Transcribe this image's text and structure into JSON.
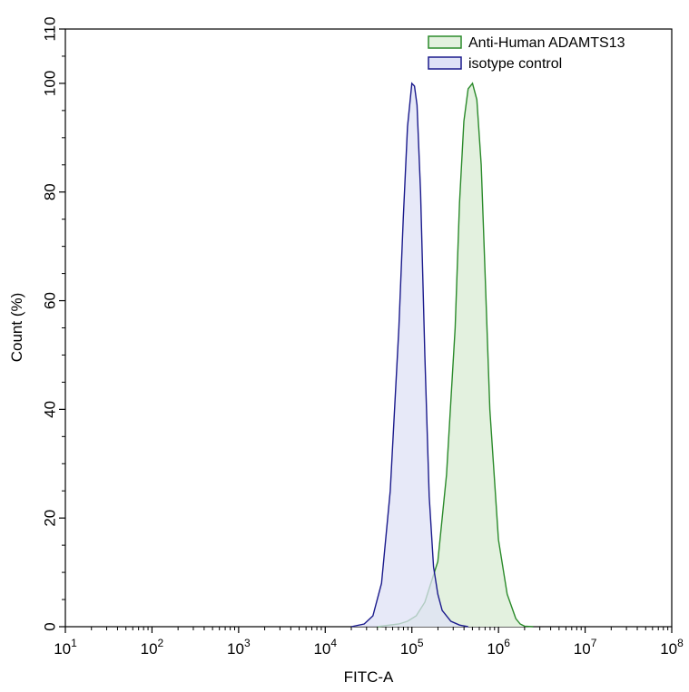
{
  "chart_data": {
    "type": "area",
    "xlabel": "FITC-A",
    "ylabel": "Count  (%)",
    "xscale": "log",
    "xlim_log10": [
      1,
      8
    ],
    "ylim": [
      0,
      110
    ],
    "x_tick_labels": [
      {
        "base": "10",
        "exp": "1"
      },
      {
        "base": "10",
        "exp": "2"
      },
      {
        "base": "10",
        "exp": "3"
      },
      {
        "base": "10",
        "exp": "4"
      },
      {
        "base": "10",
        "exp": "5"
      },
      {
        "base": "10",
        "exp": "6"
      },
      {
        "base": "10",
        "exp": "7"
      },
      {
        "base": "10",
        "exp": "8"
      }
    ],
    "y_ticks": [
      0,
      20,
      40,
      60,
      80,
      100,
      110
    ],
    "y_tick_labels": [
      "0",
      "20",
      "40",
      "60",
      "80",
      "100",
      "110"
    ],
    "grid": false,
    "legend_position": "top-right",
    "series": [
      {
        "name": "Anti-Human ADAMTS13",
        "color": "#2a8a2a",
        "fill": "#e3f1df",
        "x_log10": [
          4.6,
          4.85,
          4.95,
          5.05,
          5.15,
          5.3,
          5.4,
          5.5,
          5.55,
          5.6,
          5.65,
          5.7,
          5.75,
          5.8,
          5.85,
          5.9,
          6.0,
          6.1,
          6.2,
          6.25,
          6.3,
          6.4
        ],
        "values": [
          0,
          0.5,
          1,
          2,
          4.5,
          12,
          28,
          55,
          78,
          93,
          99,
          100,
          97,
          85,
          63,
          40,
          16,
          6,
          1.5,
          0.5,
          0.1,
          0
        ]
      },
      {
        "name": "isotype control",
        "color": "#1a1a8c",
        "fill": "#dfe2f6",
        "x_log10": [
          4.3,
          4.45,
          4.55,
          4.65,
          4.75,
          4.85,
          4.9,
          4.95,
          5.0,
          5.03,
          5.06,
          5.1,
          5.15,
          5.2,
          5.25,
          5.3,
          5.35,
          5.45,
          5.55,
          5.65
        ],
        "values": [
          0,
          0.5,
          2,
          8,
          25,
          55,
          75,
          92,
          100,
          99.5,
          96,
          80,
          50,
          24,
          11,
          6,
          3,
          1,
          0.3,
          0
        ]
      }
    ]
  }
}
